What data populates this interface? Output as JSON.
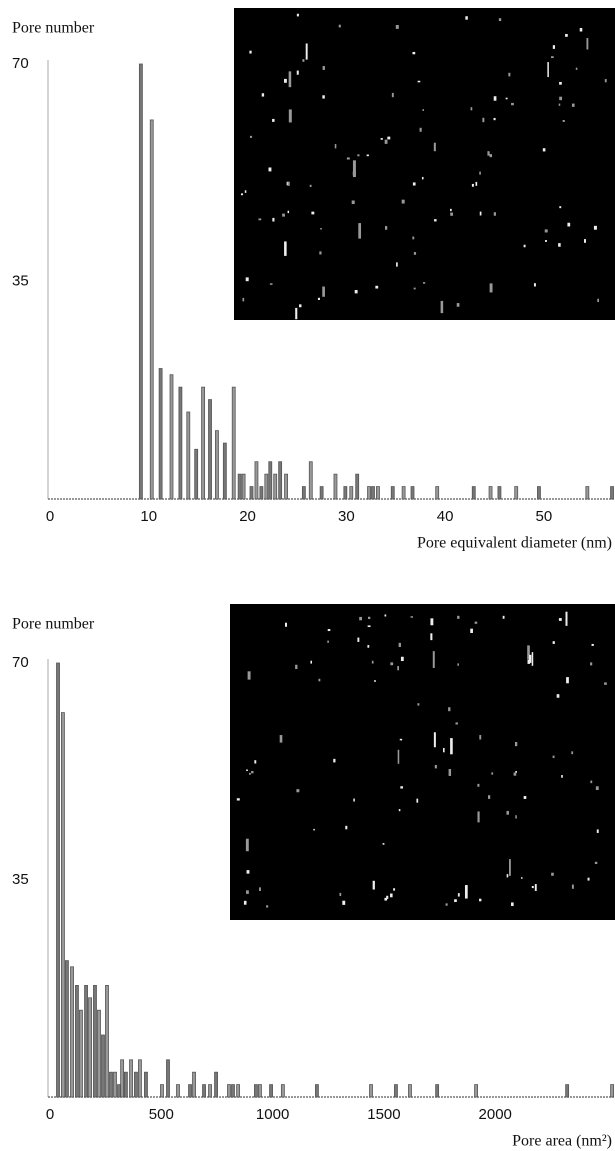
{
  "chart_data": [
    {
      "type": "bar",
      "ylabel": "Pore number",
      "xlabel": "Pore equivalent diameter (nm)",
      "x": [
        9.2,
        10.3,
        11.2,
        12.3,
        13.2,
        14,
        14.8,
        15.5,
        16.2,
        16.9,
        17.7,
        18.6,
        19.2,
        19.6,
        20.4,
        20.9,
        21.4,
        21.9,
        22.3,
        22.8,
        23.3,
        23.9,
        25.7,
        26.4,
        27.5,
        28.9,
        29.9,
        30.5,
        31.1,
        32.3,
        32.7,
        33.2,
        34.7,
        35.8,
        36.7,
        39.2,
        42.9,
        44.6,
        45.5,
        47.2,
        49.5,
        54.4,
        56.9
      ],
      "values": [
        70,
        61,
        21,
        20,
        18,
        14,
        8,
        18,
        16,
        11,
        9,
        18,
        4,
        4,
        2,
        6,
        2,
        4,
        6,
        4,
        6,
        4,
        2,
        6,
        2,
        4,
        2,
        2,
        4,
        2,
        2,
        2,
        2,
        2,
        2,
        2,
        2,
        2,
        2,
        2,
        2,
        2,
        2
      ],
      "color": "#555555",
      "xlim": [
        0,
        57.2
      ],
      "ylim": [
        0,
        70
      ],
      "xticks": [
        0,
        10,
        20,
        30,
        40,
        50
      ],
      "yticks": [
        35,
        70
      ]
    },
    {
      "type": "bar",
      "ylabel": "Pore number",
      "xlabel": "Pore area (nm²)",
      "x": [
        36,
        58,
        76,
        99,
        121,
        139,
        162,
        180,
        202,
        220,
        238,
        256,
        274,
        292,
        310,
        324,
        341,
        364,
        386,
        404,
        431,
        503,
        530,
        575,
        629,
        647,
        692,
        719,
        746,
        804,
        822,
        845,
        925,
        943,
        993,
        1046,
        1199,
        1442,
        1554,
        1617,
        1739,
        1914,
        2323,
        2525
      ],
      "values": [
        70,
        62,
        22,
        21,
        18,
        14,
        18,
        16,
        18,
        14,
        10,
        18,
        4,
        4,
        2,
        6,
        4,
        6,
        4,
        6,
        4,
        2,
        6,
        2,
        2,
        4,
        2,
        2,
        4,
        2,
        2,
        2,
        2,
        2,
        2,
        2,
        2,
        2,
        2,
        2,
        2,
        2,
        2,
        2
      ],
      "color": "#555555",
      "xlim": [
        0,
        2538
      ],
      "ylim": [
        0,
        70
      ],
      "xticks": [
        0,
        500,
        1000,
        1500,
        2000
      ],
      "yticks": [
        35,
        70
      ]
    }
  ]
}
